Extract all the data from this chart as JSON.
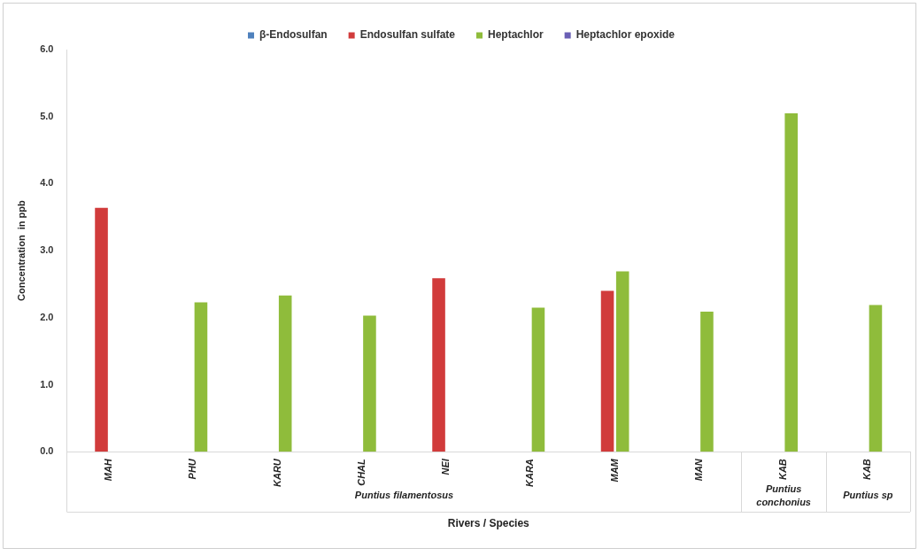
{
  "chart_data": {
    "type": "bar",
    "xlabel": "Rivers / Species",
    "ylabel": "Concentration  in ppb",
    "categories": [
      "MAH",
      "PHU",
      "KARU",
      "CHAL",
      "NEI",
      "KARA",
      "MAM",
      "MAN",
      "KAB",
      "KAB"
    ],
    "series": [
      {
        "name": "β-Endosulfan",
        "color": "#4f81bd",
        "values": [
          null,
          null,
          null,
          null,
          null,
          null,
          null,
          null,
          null,
          null
        ]
      },
      {
        "name": "Endosulfan sulfate",
        "color": "#d13b3b",
        "values": [
          3.64,
          null,
          null,
          null,
          2.59,
          null,
          2.4,
          null,
          null,
          null
        ]
      },
      {
        "name": "Heptachlor",
        "color": "#8fbc3b",
        "values": [
          null,
          2.23,
          2.33,
          2.03,
          null,
          2.15,
          2.69,
          2.09,
          5.05,
          2.19
        ]
      },
      {
        "name": "Heptachlor epoxide",
        "color": "#6a5fb5",
        "values": [
          null,
          null,
          null,
          null,
          null,
          null,
          null,
          null,
          null,
          null
        ]
      }
    ],
    "ylim": [
      0,
      6
    ],
    "yticks": [
      {
        "value": 0,
        "label": "0.0"
      },
      {
        "value": 1,
        "label": "1.0"
      },
      {
        "value": 2,
        "label": "2.0"
      },
      {
        "value": 3,
        "label": "3.0"
      },
      {
        "value": 4,
        "label": "4.0"
      },
      {
        "value": 5,
        "label": "5.0"
      },
      {
        "value": 6,
        "label": "6.0"
      }
    ],
    "annotations": [
      "Puntius filamentosus",
      "Puntius conchonius",
      "Puntius sp"
    ],
    "legend": "top",
    "grid": false
  }
}
